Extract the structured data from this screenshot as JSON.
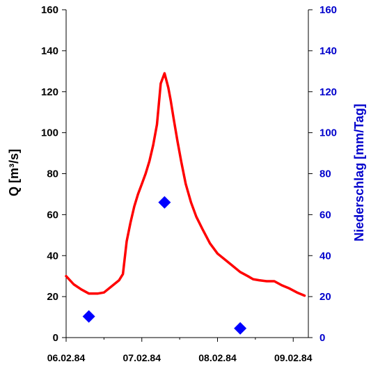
{
  "chart_data": {
    "type": "line",
    "grid": false,
    "legend": "none",
    "x_axis": {
      "ticks": [
        "06.02.84",
        "07.02.84",
        "08.02.84",
        "09.02.84"
      ],
      "range_days": [
        0,
        3.2
      ]
    },
    "y_left": {
      "label": "Q [m³/s]",
      "range": [
        0,
        160
      ],
      "ticks": [
        0,
        20,
        40,
        60,
        80,
        100,
        120,
        140,
        160
      ],
      "color": "#000000"
    },
    "y_right": {
      "label": "Niederschlag [mm/Tag]",
      "range": [
        0,
        160
      ],
      "ticks": [
        0,
        20,
        40,
        60,
        80,
        100,
        120,
        140,
        160
      ],
      "color": "#0000cc"
    },
    "series": [
      {
        "kind": "line",
        "axis": "left",
        "color": "#ff0000",
        "x_days": [
          0.0,
          0.1,
          0.2,
          0.3,
          0.42,
          0.5,
          0.6,
          0.7,
          0.75,
          0.8,
          0.85,
          0.9,
          0.95,
          1.0,
          1.05,
          1.1,
          1.15,
          1.2,
          1.25,
          1.3,
          1.35,
          1.38,
          1.42,
          1.47,
          1.52,
          1.58,
          1.65,
          1.72,
          1.8,
          1.9,
          2.0,
          2.1,
          2.2,
          2.3,
          2.4,
          2.47,
          2.55,
          2.65,
          2.75,
          2.85,
          2.95,
          3.05,
          3.15
        ],
        "y": [
          30,
          26,
          23.5,
          21.5,
          21.5,
          22,
          25,
          28,
          31,
          47,
          56,
          64,
          70,
          75,
          80,
          86,
          94,
          104,
          124,
          129,
          122,
          116,
          107,
          96,
          86,
          75,
          66,
          59,
          53,
          46,
          41,
          38,
          35,
          32,
          30,
          28.5,
          28,
          27.5,
          27.5,
          25.5,
          24,
          22,
          20.5
        ]
      },
      {
        "kind": "scatter",
        "axis": "right",
        "marker": "diamond",
        "color": "#0000ff",
        "x_days": [
          0.3,
          1.3,
          2.3
        ],
        "y": [
          10.3,
          66,
          4.5
        ]
      }
    ]
  }
}
